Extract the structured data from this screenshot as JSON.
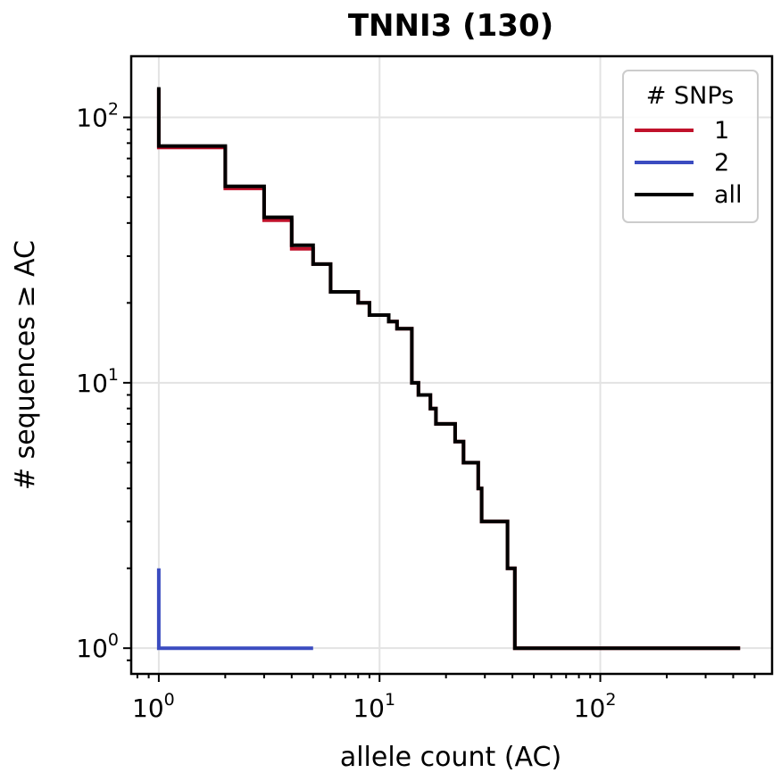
{
  "chart_data": {
    "type": "line",
    "step": "post",
    "title": "TNNI3 (130)",
    "xlabel": "allele count (AC)",
    "ylabel": "# sequences ≥ AC",
    "xscale": "log",
    "yscale": "log",
    "xlim": [
      0.75,
      600
    ],
    "ylim": [
      0.8,
      170
    ],
    "x_ticks": [
      {
        "base": "10",
        "exp": "0",
        "value": 1
      },
      {
        "base": "10",
        "exp": "1",
        "value": 10
      },
      {
        "base": "10",
        "exp": "2",
        "value": 100
      }
    ],
    "y_ticks": [
      {
        "base": "10",
        "exp": "0",
        "value": 1
      },
      {
        "base": "10",
        "exp": "1",
        "value": 10
      },
      {
        "base": "10",
        "exp": "2",
        "value": 100
      }
    ],
    "grid": true,
    "legend": {
      "title": "# SNPs",
      "position": "top-right",
      "entries": [
        "1",
        "2",
        "all"
      ]
    },
    "series": [
      {
        "name": "1",
        "color": "#c0122b",
        "points": [
          [
            1,
            128
          ],
          [
            1,
            77
          ],
          [
            2,
            77
          ],
          [
            2,
            54
          ],
          [
            3,
            54
          ],
          [
            3,
            41
          ],
          [
            4,
            41
          ],
          [
            4,
            32
          ],
          [
            5,
            32
          ],
          [
            5,
            28
          ],
          [
            6,
            28
          ],
          [
            6,
            22
          ],
          [
            8,
            22
          ],
          [
            8,
            20
          ],
          [
            9,
            20
          ],
          [
            9,
            18
          ],
          [
            11,
            18
          ],
          [
            11,
            17
          ],
          [
            12,
            17
          ],
          [
            12,
            16
          ],
          [
            14,
            16
          ],
          [
            14,
            10
          ],
          [
            15,
            10
          ],
          [
            15,
            9
          ],
          [
            17,
            9
          ],
          [
            17,
            8
          ],
          [
            18,
            8
          ],
          [
            18,
            7
          ],
          [
            22,
            7
          ],
          [
            22,
            6
          ],
          [
            24,
            6
          ],
          [
            24,
            5
          ],
          [
            28,
            5
          ],
          [
            28,
            4
          ],
          [
            29,
            4
          ],
          [
            29,
            3
          ],
          [
            38,
            3
          ],
          [
            38,
            2
          ],
          [
            41,
            2
          ],
          [
            41,
            1
          ],
          [
            430,
            1
          ]
        ]
      },
      {
        "name": "2",
        "color": "#3b4cc0",
        "points": [
          [
            1,
            2
          ],
          [
            1,
            1
          ],
          [
            5,
            1
          ]
        ]
      },
      {
        "name": "all",
        "color": "#000000",
        "points": [
          [
            1,
            130
          ],
          [
            1,
            78
          ],
          [
            2,
            78
          ],
          [
            2,
            55
          ],
          [
            3,
            55
          ],
          [
            3,
            42
          ],
          [
            4,
            42
          ],
          [
            4,
            33
          ],
          [
            5,
            33
          ],
          [
            5,
            28
          ],
          [
            6,
            28
          ],
          [
            6,
            22
          ],
          [
            8,
            22
          ],
          [
            8,
            20
          ],
          [
            9,
            20
          ],
          [
            9,
            18
          ],
          [
            11,
            18
          ],
          [
            11,
            17
          ],
          [
            12,
            17
          ],
          [
            12,
            16
          ],
          [
            14,
            16
          ],
          [
            14,
            10
          ],
          [
            15,
            10
          ],
          [
            15,
            9
          ],
          [
            17,
            9
          ],
          [
            17,
            8
          ],
          [
            18,
            8
          ],
          [
            18,
            7
          ],
          [
            22,
            7
          ],
          [
            22,
            6
          ],
          [
            24,
            6
          ],
          [
            24,
            5
          ],
          [
            28,
            5
          ],
          [
            28,
            4
          ],
          [
            29,
            4
          ],
          [
            29,
            3
          ],
          [
            38,
            3
          ],
          [
            38,
            2
          ],
          [
            41,
            2
          ],
          [
            41,
            1
          ],
          [
            430,
            1
          ]
        ]
      }
    ]
  }
}
